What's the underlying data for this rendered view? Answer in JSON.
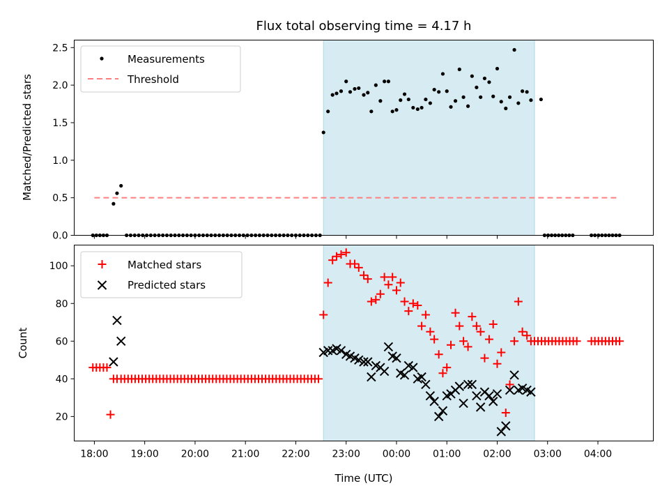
{
  "chart_data": [
    {
      "type": "scatter",
      "title": "Flux total observing time = 4.17 h",
      "xlabel": "",
      "ylabel": "Matched/Predicted stars",
      "xlim": [
        17.6,
        29.1
      ],
      "ylim": [
        0,
        2.6
      ],
      "x_ticks": [
        18,
        19,
        20,
        21,
        22,
        23,
        24,
        25,
        26,
        27,
        28
      ],
      "y_ticks": [
        0.0,
        0.5,
        1.0,
        1.5,
        2.0,
        2.5
      ],
      "y_tick_labels": [
        "0.0",
        "0.5",
        "1.0",
        "1.5",
        "2.0",
        "2.5"
      ],
      "shaded_region": [
        22.55,
        26.74
      ],
      "legend": [
        "Measurements",
        "Threshold"
      ],
      "threshold": {
        "name": "Threshold",
        "value": 0.5,
        "x_range": [
          18.0,
          28.4
        ],
        "color": "#ff7f7f"
      },
      "series": [
        {
          "name": "Measurements",
          "x": [
            17.97,
            18.04,
            18.11,
            18.18,
            18.25,
            18.38,
            18.45,
            18.53,
            18.64,
            18.72,
            18.8,
            18.88,
            18.96,
            19.04,
            19.12,
            19.2,
            19.28,
            19.36,
            19.44,
            19.52,
            19.6,
            19.68,
            19.76,
            19.84,
            19.92,
            20.0,
            20.08,
            20.16,
            20.24,
            20.32,
            20.4,
            20.48,
            20.56,
            20.64,
            20.72,
            20.8,
            20.88,
            20.96,
            21.04,
            21.12,
            21.2,
            21.28,
            21.36,
            21.44,
            21.52,
            21.6,
            21.68,
            21.76,
            21.84,
            21.92,
            22.0,
            22.08,
            22.16,
            22.24,
            22.32,
            22.4,
            22.48,
            22.55,
            22.64,
            22.73,
            22.81,
            22.9,
            23.0,
            23.08,
            23.17,
            23.25,
            23.35,
            23.43,
            23.5,
            23.59,
            23.68,
            23.76,
            23.84,
            23.92,
            24.0,
            24.08,
            24.16,
            24.24,
            24.33,
            24.42,
            24.5,
            24.58,
            24.67,
            24.75,
            24.84,
            24.92,
            25.0,
            25.08,
            25.17,
            25.25,
            25.33,
            25.42,
            25.5,
            25.59,
            25.67,
            25.75,
            25.84,
            25.92,
            26.0,
            26.08,
            26.17,
            26.25,
            26.34,
            26.42,
            26.5,
            26.59,
            26.67,
            26.87,
            26.94,
            27.01,
            27.08,
            27.15,
            27.22,
            27.29,
            27.36,
            27.43,
            27.5,
            27.87,
            27.94,
            28.01,
            28.08,
            28.15,
            28.22,
            28.29,
            28.36,
            28.43
          ],
          "y": [
            0,
            0,
            0,
            0,
            0,
            0.42,
            0.56,
            0.66,
            0,
            0,
            0,
            0,
            0,
            0,
            0,
            0,
            0,
            0,
            0,
            0,
            0,
            0,
            0,
            0,
            0,
            0,
            0,
            0,
            0,
            0,
            0,
            0,
            0,
            0,
            0,
            0,
            0,
            0,
            0,
            0,
            0,
            0,
            0,
            0,
            0,
            0,
            0,
            0,
            0,
            0,
            0,
            0,
            0,
            0,
            0,
            0,
            0,
            1.37,
            1.65,
            1.87,
            1.89,
            1.92,
            2.05,
            1.91,
            1.95,
            1.96,
            1.87,
            1.9,
            1.65,
            2.0,
            1.79,
            2.05,
            2.05,
            1.65,
            1.67,
            1.8,
            1.88,
            1.81,
            1.7,
            1.68,
            1.7,
            1.81,
            1.76,
            1.94,
            1.91,
            2.15,
            1.92,
            1.71,
            1.79,
            2.21,
            1.84,
            1.72,
            2.12,
            1.97,
            1.84,
            2.09,
            2.04,
            1.85,
            2.22,
            1.78,
            1.69,
            1.84,
            2.47,
            1.76,
            1.92,
            1.91,
            1.8,
            1.81,
            0,
            0,
            0,
            0,
            0,
            0,
            0,
            0,
            0,
            0,
            0,
            0,
            0,
            0,
            0,
            0,
            0,
            0
          ],
          "color": "#000000"
        }
      ]
    },
    {
      "type": "scatter",
      "title": "",
      "xlabel": "Time (UTC)",
      "ylabel": "Count",
      "xlim": [
        17.6,
        29.1
      ],
      "ylim": [
        7,
        111
      ],
      "x_ticks": [
        18,
        19,
        20,
        21,
        22,
        23,
        24,
        25,
        26,
        27,
        28
      ],
      "x_tick_labels": [
        "18:00",
        "19:00",
        "20:00",
        "21:00",
        "22:00",
        "23:00",
        "00:00",
        "01:00",
        "02:00",
        "03:00",
        "04:00"
      ],
      "y_ticks": [
        20,
        40,
        60,
        80,
        100
      ],
      "y_tick_labels": [
        "20",
        "40",
        "60",
        "80",
        "100"
      ],
      "shaded_region": [
        22.55,
        26.74
      ],
      "legend": [
        "Matched stars",
        "Predicted stars"
      ],
      "series": [
        {
          "name": "Matched stars",
          "marker": "plus",
          "color": "#ff0000",
          "x": [
            17.97,
            18.04,
            18.11,
            18.18,
            18.25,
            18.32,
            18.38,
            18.45,
            18.53,
            18.6,
            18.67,
            18.74,
            18.81,
            18.88,
            18.95,
            19.02,
            19.09,
            19.16,
            19.23,
            19.3,
            19.37,
            19.44,
            19.51,
            19.58,
            19.65,
            19.72,
            19.79,
            19.86,
            19.93,
            20.0,
            20.07,
            20.14,
            20.21,
            20.28,
            20.35,
            20.42,
            20.49,
            20.56,
            20.63,
            20.7,
            20.77,
            20.84,
            20.91,
            20.98,
            21.05,
            21.12,
            21.19,
            21.26,
            21.33,
            21.4,
            21.47,
            21.54,
            21.61,
            21.68,
            21.75,
            21.82,
            21.89,
            21.96,
            22.03,
            22.1,
            22.17,
            22.24,
            22.31,
            22.38,
            22.45,
            22.55,
            22.64,
            22.73,
            22.81,
            22.9,
            23.0,
            23.08,
            23.17,
            23.25,
            23.35,
            23.43,
            23.5,
            23.59,
            23.68,
            23.76,
            23.84,
            23.92,
            24.0,
            24.08,
            24.16,
            24.24,
            24.33,
            24.42,
            24.5,
            24.58,
            24.67,
            24.75,
            24.84,
            24.92,
            25.0,
            25.08,
            25.17,
            25.25,
            25.33,
            25.42,
            25.5,
            25.59,
            25.67,
            25.75,
            25.84,
            25.92,
            26.0,
            26.08,
            26.17,
            26.25,
            26.34,
            26.42,
            26.5,
            26.59,
            26.67,
            26.74,
            26.81,
            26.88,
            26.95,
            27.02,
            27.09,
            27.16,
            27.23,
            27.3,
            27.37,
            27.44,
            27.51,
            27.58,
            27.87,
            27.94,
            28.01,
            28.08,
            28.15,
            28.22,
            28.29,
            28.36,
            28.43
          ],
          "y": [
            46,
            46,
            46,
            46,
            46,
            21,
            40,
            40,
            40,
            40,
            40,
            40,
            40,
            40,
            40,
            40,
            40,
            40,
            40,
            40,
            40,
            40,
            40,
            40,
            40,
            40,
            40,
            40,
            40,
            40,
            40,
            40,
            40,
            40,
            40,
            40,
            40,
            40,
            40,
            40,
            40,
            40,
            40,
            40,
            40,
            40,
            40,
            40,
            40,
            40,
            40,
            40,
            40,
            40,
            40,
            40,
            40,
            40,
            40,
            40,
            40,
            40,
            40,
            40,
            40,
            74,
            91,
            103,
            105,
            106,
            107,
            101,
            101,
            99,
            95,
            93,
            81,
            82,
            85,
            94,
            90,
            94,
            87,
            91,
            81,
            76,
            80,
            79,
            68,
            74,
            65,
            61,
            53,
            43,
            46,
            58,
            75,
            68,
            60,
            57,
            73,
            68,
            65,
            51,
            61,
            69,
            48,
            54,
            22,
            37,
            60,
            81,
            65,
            63,
            60,
            60,
            60,
            60,
            60,
            60,
            60,
            60,
            60,
            60,
            60,
            60,
            60,
            60,
            60,
            60,
            60,
            60,
            60,
            60,
            60,
            60,
            60
          ]
        },
        {
          "name": "Predicted stars",
          "marker": "x",
          "color": "#000000",
          "x": [
            18.38,
            18.45,
            18.53,
            22.55,
            22.64,
            22.73,
            22.81,
            22.9,
            23.0,
            23.08,
            23.17,
            23.25,
            23.35,
            23.43,
            23.5,
            23.59,
            23.68,
            23.76,
            23.84,
            23.92,
            24.0,
            24.08,
            24.16,
            24.24,
            24.33,
            24.42,
            24.5,
            24.58,
            24.67,
            24.75,
            24.84,
            24.92,
            25.0,
            25.08,
            25.17,
            25.25,
            25.33,
            25.42,
            25.5,
            25.59,
            25.67,
            25.75,
            25.84,
            25.92,
            26.0,
            26.08,
            26.17,
            26.25,
            26.34,
            26.42,
            26.5,
            26.59,
            26.67
          ],
          "y": [
            49,
            71,
            60,
            54,
            55,
            55,
            56,
            55,
            53,
            52,
            51,
            50,
            49,
            49,
            41,
            47,
            46,
            44,
            57,
            52,
            51,
            43,
            42,
            47,
            46,
            40,
            41,
            37,
            31,
            28,
            20,
            23,
            31,
            32,
            34,
            36,
            27,
            37,
            37,
            31,
            25,
            33,
            31,
            28,
            32,
            12,
            15,
            34,
            42,
            34,
            35,
            34,
            33
          ]
        }
      ]
    }
  ]
}
